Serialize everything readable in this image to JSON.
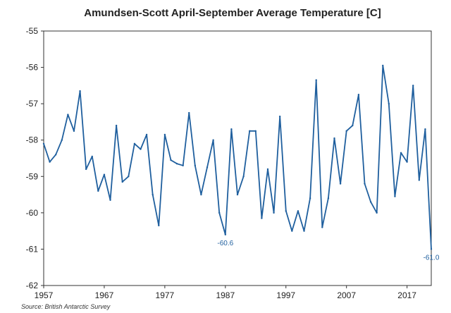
{
  "chart_data": {
    "type": "line",
    "title": "Amundsen-Scott April-September Average Temperature [C]",
    "xlabel": "",
    "ylabel": "",
    "xlim": [
      1957,
      2021
    ],
    "ylim": [
      -62,
      -55
    ],
    "x_ticks": [
      "1957",
      "1967",
      "1977",
      "1987",
      "1997",
      "2007",
      "2017"
    ],
    "y_ticks": [
      "-55",
      "-56",
      "-57",
      "-58",
      "-59",
      "-60",
      "-61",
      "-62"
    ],
    "grid": false,
    "line_color": "#1f5f9e",
    "source": "Source: British Antarctic Survey",
    "annotations": [
      {
        "text": "-60.6",
        "x": 1987,
        "y": -60.6
      },
      {
        "text": "-61.0",
        "x": 2021,
        "y": -61.0
      }
    ],
    "series": [
      {
        "x": [
          1957,
          1958,
          1959,
          1960,
          1961,
          1962,
          1963,
          1964,
          1965,
          1966,
          1967,
          1968,
          1969,
          1970,
          1971,
          1972,
          1973,
          1974,
          1975,
          1976,
          1977,
          1978,
          1979,
          1980,
          1981,
          1982,
          1983,
          1984,
          1985,
          1986,
          1987,
          1988,
          1989,
          1990,
          1991,
          1992,
          1993,
          1994,
          1995,
          1996,
          1997,
          1998,
          1999,
          2000,
          2001,
          2002,
          2003,
          2004,
          2005,
          2006,
          2007,
          2008,
          2009,
          2010,
          2011,
          2012,
          2013,
          2014,
          2015,
          2016,
          2017,
          2018,
          2019,
          2020,
          2021
        ],
        "values": [
          -58.1,
          -58.6,
          -58.4,
          -58.0,
          -57.3,
          -57.75,
          -56.65,
          -58.8,
          -58.45,
          -59.4,
          -58.95,
          -59.65,
          -57.6,
          -59.15,
          -59.0,
          -58.1,
          -58.25,
          -57.85,
          -59.5,
          -60.35,
          -57.85,
          -58.55,
          -58.65,
          -58.7,
          -57.25,
          -58.7,
          -59.5,
          -58.75,
          -58.0,
          -60.0,
          -60.6,
          -57.7,
          -59.5,
          -59.0,
          -57.75,
          -57.75,
          -60.15,
          -58.8,
          -60.0,
          -57.35,
          -59.95,
          -60.5,
          -59.95,
          -60.5,
          -59.6,
          -56.35,
          -60.4,
          -59.6,
          -57.95,
          -59.2,
          -57.75,
          -57.6,
          -56.75,
          -59.2,
          -59.7,
          -60.0,
          -55.95,
          -57.0,
          -59.55,
          -58.35,
          -58.6,
          -56.5,
          -59.1,
          -57.7,
          -61.0
        ]
      }
    ]
  }
}
